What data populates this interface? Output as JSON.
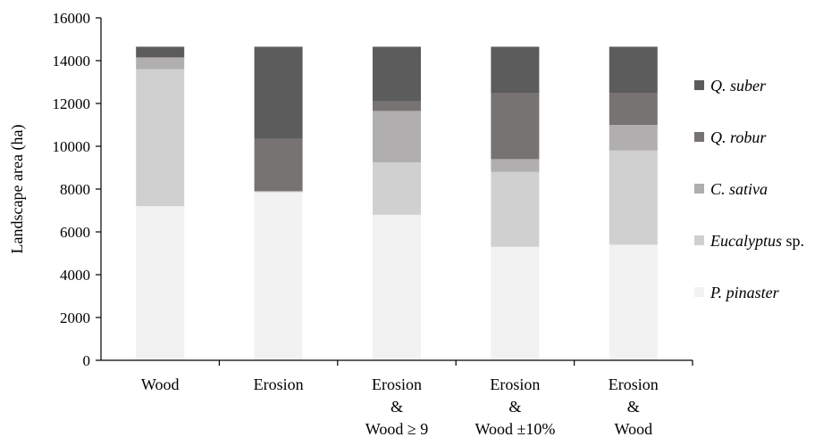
{
  "chart_data": {
    "type": "bar",
    "stacked": true,
    "title": "",
    "xlabel": "",
    "ylabel": "Landscape area (ha)",
    "ylim": [
      0,
      16000
    ],
    "yticks": [
      0,
      2000,
      4000,
      6000,
      8000,
      10000,
      12000,
      14000,
      16000
    ],
    "grid": false,
    "legend_position": "right",
    "categories": [
      [
        "Wood"
      ],
      [
        "Erosion"
      ],
      [
        "Erosion",
        "&",
        "Wood ≥ 9"
      ],
      [
        "Erosion",
        "&",
        "Wood ±10%"
      ],
      [
        "Erosion",
        "&",
        "Wood"
      ]
    ],
    "series": [
      {
        "name": "P. pinaster",
        "name_suffix": "",
        "color": "#f2f2f2",
        "values": [
          7200,
          7850,
          6800,
          5300,
          5400
        ]
      },
      {
        "name": "Eucalyptus",
        "name_suffix": " sp.",
        "color": "#d0d0d0",
        "values": [
          6400,
          50,
          2450,
          3500,
          4400
        ]
      },
      {
        "name": "C. sativa",
        "name_suffix": "",
        "color": "#b0aeae",
        "values": [
          550,
          0,
          2400,
          600,
          1200
        ]
      },
      {
        "name": "Q. robur",
        "name_suffix": "",
        "color": "#787373",
        "values": [
          0,
          2450,
          450,
          3100,
          1500
        ]
      },
      {
        "name": "Q. suber",
        "name_suffix": "",
        "color": "#5c5c5c",
        "values": [
          500,
          4300,
          2550,
          2150,
          2150
        ]
      }
    ]
  }
}
